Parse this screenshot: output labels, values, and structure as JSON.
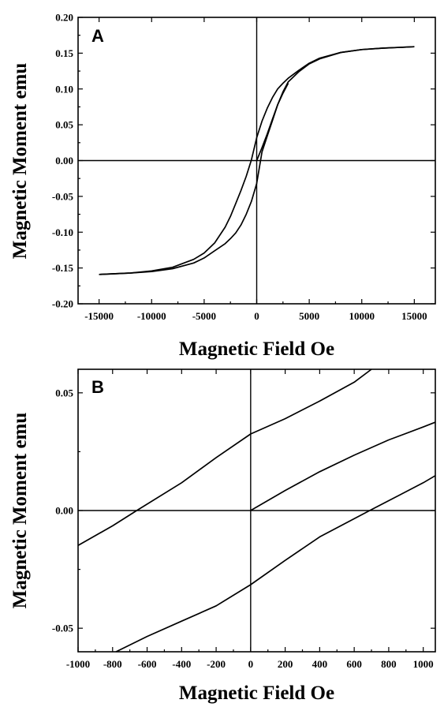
{
  "chart_data": [
    {
      "type": "line",
      "panel_label": "A",
      "xlabel": "Magnetic Field Oe",
      "ylabel": "Magnetic Moment emu",
      "xlim": [
        -17000,
        17000
      ],
      "ylim": [
        -0.2,
        0.2
      ],
      "x_ticks": [
        -15000,
        -10000,
        -5000,
        0,
        5000,
        10000,
        15000
      ],
      "x_tick_labels": [
        "-15000",
        "-10000",
        "-5000",
        "0",
        "5000",
        "10000",
        "15000"
      ],
      "y_ticks": [
        -0.2,
        -0.15,
        -0.1,
        -0.05,
        0,
        0.05,
        0.1,
        0.15,
        0.2
      ],
      "y_tick_labels": [
        "-0.20",
        "-0.15",
        "-0.10",
        "-0.05",
        "0.00",
        "0.05",
        "0.10",
        "0.15",
        "0.20"
      ],
      "zero_lines": true,
      "grid": false,
      "series": [
        {
          "x": [
            -15000,
            -12000,
            -10000,
            -8000,
            -6000,
            -5000,
            -4000,
            -3000,
            -2500,
            -2000,
            -1500,
            -1000,
            -500,
            0,
            500,
            1000,
            1500,
            2000,
            2500,
            3000,
            4000,
            5000,
            6000,
            8000,
            10000,
            12000,
            15000
          ],
          "y": [
            -0.159,
            -0.157,
            -0.154,
            -0.149,
            -0.138,
            -0.129,
            -0.115,
            -0.093,
            -0.078,
            -0.06,
            -0.042,
            -0.022,
            0.001,
            0.032,
            0.055,
            0.073,
            0.088,
            0.1,
            0.108,
            0.115,
            0.126,
            0.136,
            0.143,
            0.151,
            0.155,
            0.157,
            0.159
          ]
        },
        {
          "x": [
            15000,
            12000,
            10000,
            8000,
            6000,
            5000,
            4000,
            3000,
            2500,
            2000,
            1500,
            1000,
            500,
            0,
            -500,
            -1000,
            -1500,
            -2000,
            -2500,
            -3000,
            -4000,
            -5000,
            -6000,
            -8000,
            -10000,
            -12000,
            -15000
          ],
          "y": [
            0.159,
            0.157,
            0.155,
            0.151,
            0.142,
            0.135,
            0.124,
            0.11,
            0.096,
            0.078,
            0.056,
            0.034,
            0.012,
            -0.032,
            -0.057,
            -0.075,
            -0.09,
            -0.101,
            -0.109,
            -0.116,
            -0.126,
            -0.136,
            -0.143,
            -0.151,
            -0.155,
            -0.157,
            -0.159
          ]
        },
        {
          "x": [
            0,
            500,
            1000,
            1500,
            2000,
            2500,
            3000
          ],
          "y": [
            0,
            0.018,
            0.037,
            0.058,
            0.078,
            0.094,
            0.108
          ]
        }
      ]
    },
    {
      "type": "line",
      "panel_label": "B",
      "xlabel": "Magnetic Field Oe",
      "ylabel": "Magnetic Moment emu",
      "xlim": [
        -1000,
        1070
      ],
      "ylim": [
        -0.06,
        0.06
      ],
      "x_ticks": [
        -1000,
        -800,
        -600,
        -400,
        -200,
        0,
        200,
        400,
        600,
        800,
        1000
      ],
      "x_tick_labels": [
        "-1000",
        "-800",
        "-600",
        "-400",
        "-200",
        "0",
        "200",
        "400",
        "600",
        "800",
        "1000"
      ],
      "y_ticks": [
        -0.05,
        0,
        0.05
      ],
      "y_tick_labels": [
        "-0.05",
        "0.00",
        "0.05"
      ],
      "zero_lines": true,
      "grid": false,
      "series": [
        {
          "x": [
            -1000,
            -800,
            -660,
            -400,
            -200,
            0,
            200,
            400,
            600,
            700
          ],
          "y": [
            -0.0148,
            -0.0065,
            0,
            0.0118,
            0.0225,
            0.0325,
            0.039,
            0.0465,
            0.0545,
            0.06
          ]
        },
        {
          "x": [
            0,
            200,
            400,
            600,
            800,
            1000,
            1070
          ],
          "y": [
            0,
            0.0085,
            0.0165,
            0.0235,
            0.03,
            0.0355,
            0.0375
          ]
        },
        {
          "x": [
            -780,
            -600,
            -400,
            -200,
            0,
            200,
            400,
            690,
            1000,
            1070
          ],
          "y": [
            -0.06,
            -0.0535,
            -0.047,
            -0.0405,
            -0.0315,
            -0.0212,
            -0.0112,
            0,
            0.0118,
            0.0148
          ]
        }
      ]
    }
  ]
}
